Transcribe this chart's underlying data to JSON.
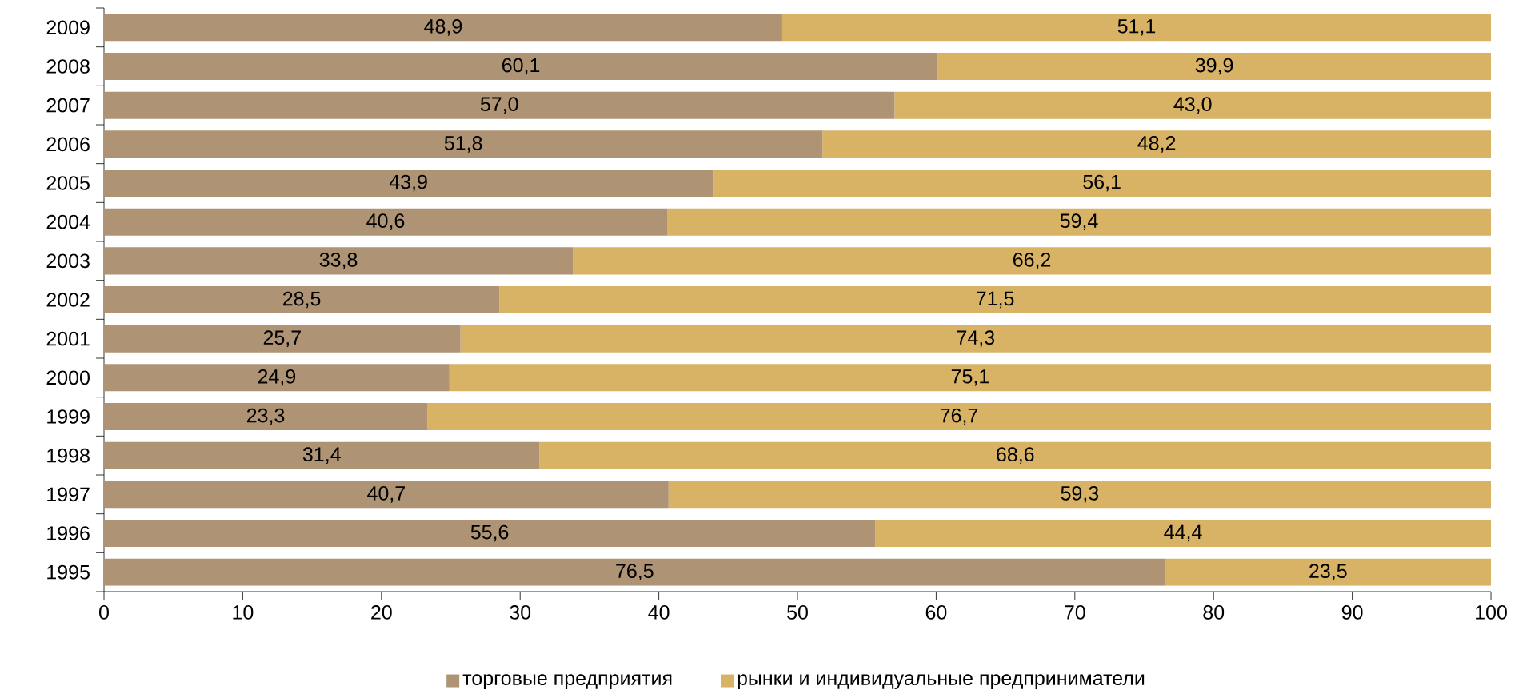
{
  "chart_data": {
    "type": "bar",
    "orientation": "horizontal",
    "stacked": true,
    "categories": [
      "2009",
      "2008",
      "2007",
      "2006",
      "2005",
      "2004",
      "2003",
      "2002",
      "2001",
      "2000",
      "1999",
      "1998",
      "1997",
      "1996",
      "1995"
    ],
    "series": [
      {
        "name": "торговые предприятия",
        "color": "#ae9474",
        "values": [
          48.9,
          60.1,
          57.0,
          51.8,
          43.9,
          40.6,
          33.8,
          28.5,
          25.7,
          24.9,
          23.3,
          31.4,
          40.7,
          55.6,
          76.5
        ],
        "value_labels": [
          "48,9",
          "60,1",
          "57,0",
          "51,8",
          "43,9",
          "40,6",
          "33,8",
          "28,5",
          "25,7",
          "24,9",
          "23,3",
          "31,4",
          "40,7",
          "55,6",
          "76,5"
        ]
      },
      {
        "name": "рынки и индивидуальные предприниматели",
        "color": "#d8b265",
        "values": [
          51.1,
          39.9,
          43.0,
          48.2,
          56.1,
          59.4,
          66.2,
          71.5,
          74.3,
          75.1,
          76.7,
          68.6,
          59.3,
          44.4,
          23.5
        ],
        "value_labels": [
          "51,1",
          "39,9",
          "43,0",
          "48,2",
          "56,1",
          "59,4",
          "66,2",
          "71,5",
          "74,3",
          "75,1",
          "76,7",
          "68,6",
          "59,3",
          "44,4",
          "23,5"
        ]
      }
    ],
    "xlim": [
      0,
      100
    ],
    "xticks": [
      0,
      10,
      20,
      30,
      40,
      50,
      60,
      70,
      80,
      90,
      100
    ],
    "legend": "bottom"
  }
}
